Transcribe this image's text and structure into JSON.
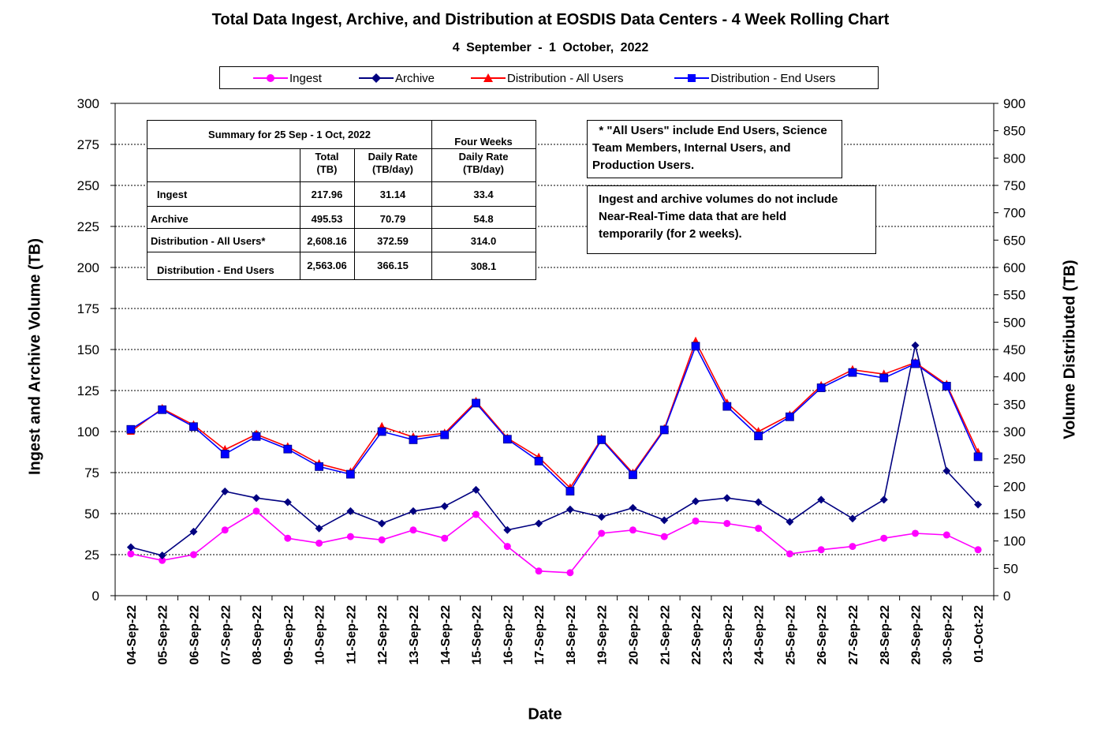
{
  "chart_data": {
    "type": "line",
    "title": "Total Data Ingest, Archive, and  Distribution at EOSDIS Data Centers - 4 Week Rolling Chart",
    "subtitle": "4  September   -  1  October,  2022",
    "xlabel": "Date",
    "ylabel": "Ingest and Archive Volume (TB)",
    "y2label": "Volume Distributed (TB)",
    "ylim": [
      0,
      300
    ],
    "y2lim": [
      0,
      900
    ],
    "yticks": [
      0,
      25,
      50,
      75,
      100,
      125,
      150,
      175,
      200,
      225,
      250,
      275,
      300
    ],
    "y2ticks": [
      0,
      50,
      100,
      150,
      200,
      250,
      300,
      350,
      400,
      450,
      500,
      550,
      600,
      650,
      700,
      750,
      800,
      850,
      900
    ],
    "grid": "horizontal dashed",
    "legend_position": "top",
    "categories": [
      "04-Sep-22",
      "05-Sep-22",
      "06-Sep-22",
      "07-Sep-22",
      "08-Sep-22",
      "09-Sep-22",
      "10-Sep-22",
      "11-Sep-22",
      "12-Sep-22",
      "13-Sep-22",
      "14-Sep-22",
      "15-Sep-22",
      "16-Sep-22",
      "17-Sep-22",
      "18-Sep-22",
      "19-Sep-22",
      "20-Sep-22",
      "21-Sep-22",
      "22-Sep-22",
      "23-Sep-22",
      "24-Sep-22",
      "25-Sep-22",
      "26-Sep-22",
      "27-Sep-22",
      "28-Sep-22",
      "29-Sep-22",
      "30-Sep-22",
      "01-Oct-22"
    ],
    "series": [
      {
        "name": "Ingest",
        "axis": "left",
        "color": "#ff00ff",
        "marker": "circle",
        "values": [
          25.5,
          21.5,
          25,
          40,
          51.5,
          35,
          32,
          36,
          34,
          40,
          35,
          49.5,
          30,
          15,
          14,
          38,
          40,
          36,
          45.5,
          44,
          41,
          25.5,
          28,
          30,
          35,
          38,
          37,
          28
        ]
      },
      {
        "name": "Archive",
        "axis": "left",
        "color": "#000080",
        "marker": "diamond",
        "values": [
          29.5,
          24.5,
          39,
          63.5,
          59.5,
          57,
          41,
          51.5,
          44,
          51.5,
          54.5,
          64.5,
          40,
          44,
          52.5,
          48,
          53.5,
          46,
          57.5,
          59.5,
          57,
          45,
          58.5,
          47,
          58.5,
          152.5,
          76,
          55.5
        ]
      },
      {
        "name": "Distribution - All Users",
        "axis": "right",
        "color": "#ff0000",
        "marker": "triangle",
        "values": [
          300,
          342,
          312,
          267,
          295,
          272,
          241,
          226,
          309,
          290,
          297,
          355,
          288,
          253,
          197,
          287,
          224,
          305,
          465,
          352,
          300,
          330,
          384,
          413,
          405,
          426,
          386,
          262
        ]
      },
      {
        "name": "Distribution - End Users",
        "axis": "right",
        "color": "#0000ff",
        "marker": "square",
        "values": [
          304,
          340,
          309,
          259,
          291,
          268,
          236,
          222,
          300,
          285,
          294,
          352,
          286,
          246,
          191,
          285,
          221,
          303,
          456,
          346,
          292,
          327,
          380,
          408,
          398,
          424,
          383,
          254
        ]
      }
    ]
  },
  "summary": {
    "title": "Summary  for  25  Sep   -  1  Oct,  2022",
    "four_weeks": "Four Weeks",
    "col_total_1": "Total",
    "col_total_2": "(TB)",
    "col_rate_1": "Daily Rate",
    "col_rate_2": "(TB/day)",
    "col_fw_1": "Daily Rate",
    "col_fw_2": "(TB/day)",
    "rows": [
      {
        "label": "Ingest",
        "total": "217.96",
        "rate": "31.14",
        "fw": "33.4"
      },
      {
        "label": "Archive",
        "total": "495.53",
        "rate": "70.79",
        "fw": "54.8"
      },
      {
        "label": "Distribution - All Users*",
        "total": "2,608.16",
        "rate": "372.59",
        "fw": "314.0"
      },
      {
        "label": "Distribution - End Users",
        "total": "2,563.06",
        "rate": "366.15",
        "fw": "308.1"
      }
    ]
  },
  "notes": {
    "note1": [
      "  * \"All Users\" include End Users, Science",
      "Team Members,  Internal Users, and",
      "Production Users."
    ],
    "note2": [
      "Ingest and archive volumes do not include",
      "Near-Real-Time data that are held",
      "temporarily (for 2 weeks)."
    ]
  }
}
